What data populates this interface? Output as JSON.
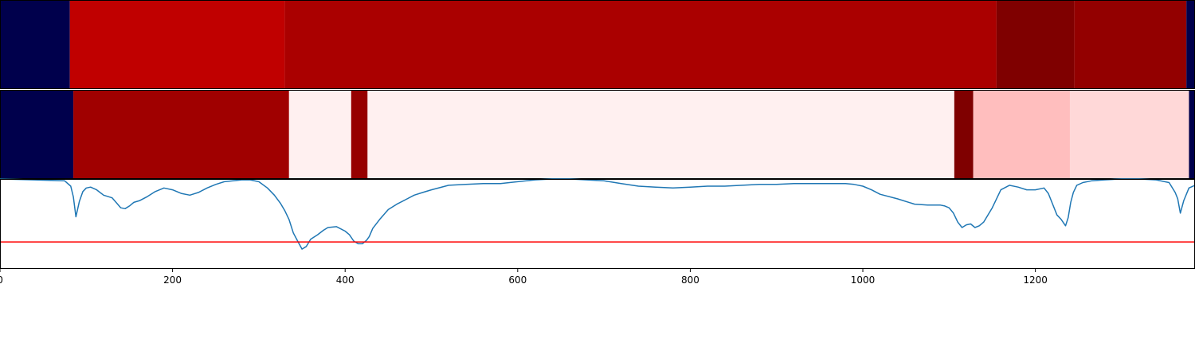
{
  "chart_data": [
    {
      "type": "heatmap",
      "segments": [
        {
          "start": 0,
          "end": 81,
          "color": "#00004c"
        },
        {
          "start": 81,
          "end": 330,
          "color": "#c00000"
        },
        {
          "start": 330,
          "end": 1155,
          "color": "#aa0000"
        },
        {
          "start": 1155,
          "end": 1245,
          "color": "#7f0000"
        },
        {
          "start": 1245,
          "end": 1375,
          "color": "#930000"
        },
        {
          "start": 1375,
          "end": 1385,
          "color": "#00004c"
        }
      ]
    },
    {
      "type": "heatmap",
      "segments": [
        {
          "start": 0,
          "end": 85,
          "color": "#00004c"
        },
        {
          "start": 85,
          "end": 335,
          "color": "#a00000"
        },
        {
          "start": 335,
          "end": 407,
          "color": "#fff0f0"
        },
        {
          "start": 407,
          "end": 426,
          "color": "#960000"
        },
        {
          "start": 426,
          "end": 1106,
          "color": "#fff0f0"
        },
        {
          "start": 1106,
          "end": 1128,
          "color": "#7f0000"
        },
        {
          "start": 1128,
          "end": 1240,
          "color": "#ffbebe"
        },
        {
          "start": 1240,
          "end": 1378,
          "color": "#ffd8d8"
        },
        {
          "start": 1378,
          "end": 1385,
          "color": "#00004c"
        }
      ]
    },
    {
      "type": "line",
      "x": [
        0,
        40,
        75,
        82,
        85,
        88,
        92,
        96,
        100,
        105,
        112,
        120,
        130,
        140,
        145,
        150,
        155,
        162,
        170,
        180,
        190,
        200,
        210,
        220,
        230,
        240,
        250,
        260,
        270,
        280,
        290,
        300,
        310,
        318,
        325,
        330,
        335,
        340,
        345,
        350,
        355,
        360,
        368,
        375,
        380,
        390,
        400,
        405,
        410,
        415,
        420,
        425,
        428,
        432,
        440,
        450,
        460,
        470,
        480,
        490,
        500,
        520,
        540,
        560,
        580,
        600,
        620,
        640,
        660,
        680,
        700,
        720,
        740,
        760,
        780,
        800,
        820,
        840,
        860,
        880,
        900,
        920,
        940,
        950,
        960,
        970,
        980,
        990,
        1000,
        1010,
        1020,
        1040,
        1060,
        1075,
        1085,
        1090,
        1095,
        1100,
        1105,
        1110,
        1115,
        1120,
        1125,
        1130,
        1135,
        1140,
        1150,
        1160,
        1170,
        1180,
        1190,
        1200,
        1210,
        1215,
        1220,
        1225,
        1230,
        1235,
        1238,
        1241,
        1244,
        1248,
        1255,
        1265,
        1280,
        1300,
        1320,
        1340,
        1355,
        1362,
        1365,
        1368,
        1372,
        1378,
        1385
      ],
      "y": [
        1.0,
        0.99,
        0.98,
        0.92,
        0.8,
        0.58,
        0.75,
        0.86,
        0.9,
        0.91,
        0.88,
        0.82,
        0.79,
        0.68,
        0.67,
        0.7,
        0.74,
        0.76,
        0.8,
        0.86,
        0.9,
        0.88,
        0.84,
        0.82,
        0.85,
        0.9,
        0.94,
        0.97,
        0.98,
        0.99,
        0.99,
        0.97,
        0.9,
        0.82,
        0.73,
        0.65,
        0.55,
        0.4,
        0.31,
        0.22,
        0.25,
        0.33,
        0.38,
        0.43,
        0.46,
        0.47,
        0.42,
        0.38,
        0.31,
        0.28,
        0.28,
        0.32,
        0.36,
        0.45,
        0.55,
        0.66,
        0.72,
        0.77,
        0.82,
        0.85,
        0.88,
        0.93,
        0.94,
        0.95,
        0.95,
        0.97,
        0.99,
        1.0,
        1.0,
        0.99,
        0.98,
        0.95,
        0.92,
        0.91,
        0.9,
        0.91,
        0.92,
        0.92,
        0.93,
        0.94,
        0.94,
        0.95,
        0.95,
        0.95,
        0.95,
        0.95,
        0.95,
        0.94,
        0.92,
        0.88,
        0.83,
        0.78,
        0.72,
        0.71,
        0.71,
        0.71,
        0.7,
        0.68,
        0.62,
        0.52,
        0.46,
        0.49,
        0.5,
        0.46,
        0.48,
        0.52,
        0.68,
        0.88,
        0.93,
        0.91,
        0.88,
        0.88,
        0.9,
        0.84,
        0.72,
        0.6,
        0.55,
        0.48,
        0.57,
        0.74,
        0.85,
        0.93,
        0.96,
        0.98,
        0.99,
        1.0,
        1.0,
        0.99,
        0.96,
        0.85,
        0.78,
        0.62,
        0.76,
        0.9,
        0.93
      ],
      "threshold": 0.3,
      "threshold_color": "#ff0000",
      "line_color": "#1f77b4",
      "xlim": [
        0,
        1385
      ],
      "ylim": [
        0.0,
        1.0
      ],
      "xticks": [
        0,
        200,
        400,
        600,
        800,
        1000,
        1200
      ],
      "xtick_labels": [
        "0",
        "200",
        "400",
        "600",
        "800",
        "1000",
        "1200"
      ]
    }
  ]
}
